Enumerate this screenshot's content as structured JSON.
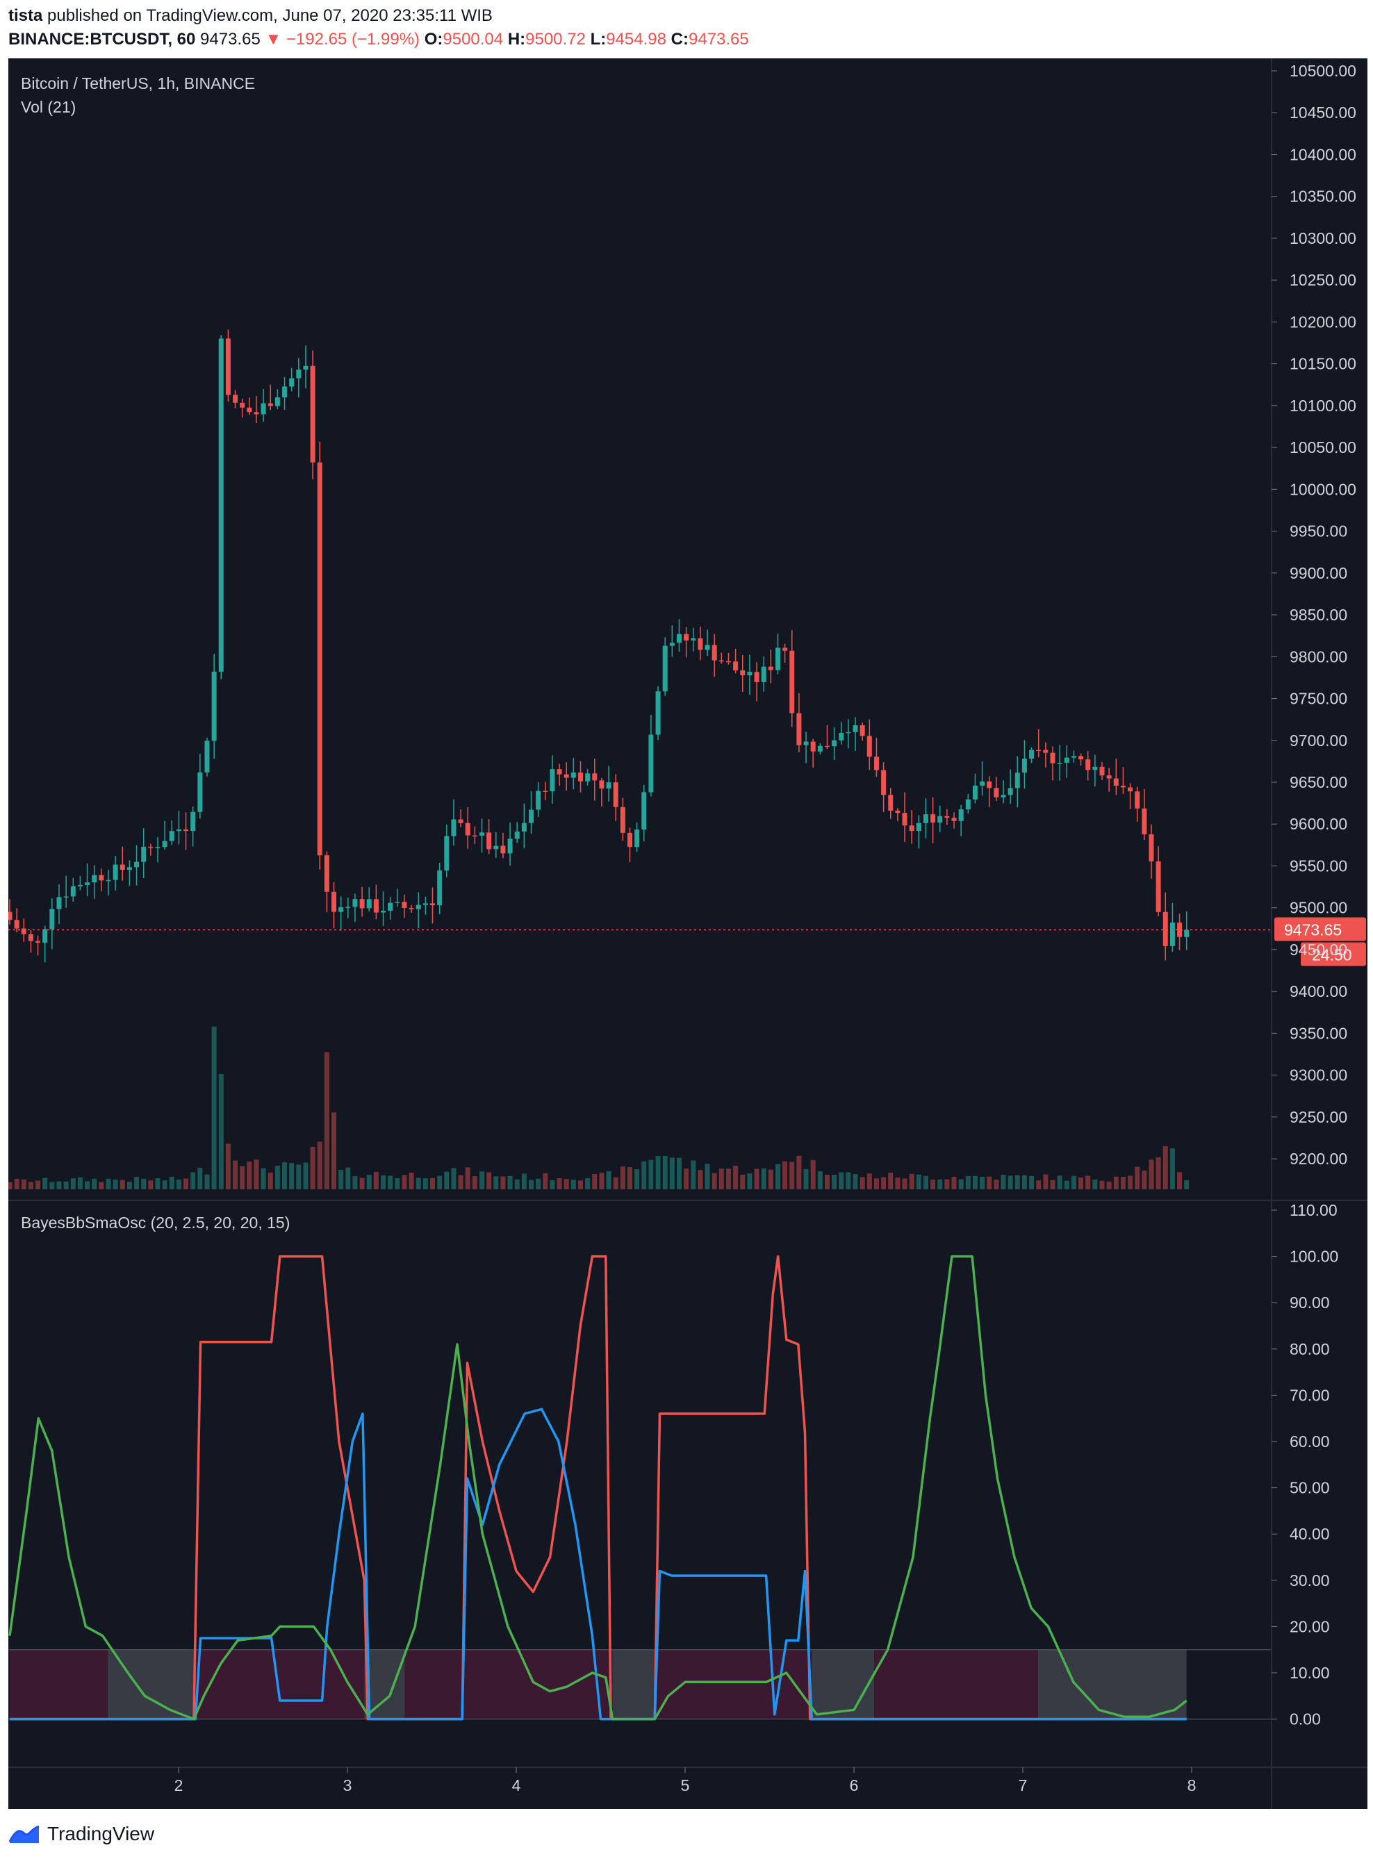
{
  "header": {
    "author": "tista",
    "published": "published on TradingView.com, June 07, 2020 23:35:11 WIB",
    "symbol": "BINANCE:BTCUSDT, 60",
    "last": "9473.65",
    "change": "▼ −192.65 (−1.99%)",
    "o_label": "O:",
    "o_value": "9500.04",
    "h_label": "H:",
    "h_value": "9500.72",
    "l_label": "L:",
    "l_value": "9454.98",
    "c_label": "C:",
    "c_value": "9473.65"
  },
  "footer": {
    "brand": "TradingView",
    "logo_icon": "tradingview-logo-icon"
  },
  "colors": {
    "background": "#131722",
    "up": "#26a69a",
    "down": "#ef5350",
    "osc_red": "#ef5350",
    "osc_blue": "#2196f3",
    "osc_green": "#4caf50"
  },
  "chart_data": [
    {
      "type": "candlestick",
      "title": "Bitcoin / TetherUS, 1h, BINANCE",
      "subtitle": "Vol (21)",
      "ylim": [
        9160,
        10520
      ],
      "y_ticks": [
        "10500.00",
        "10450.00",
        "10400.00",
        "10350.00",
        "10300.00",
        "10250.00",
        "10200.00",
        "10150.00",
        "10100.00",
        "10050.00",
        "10000.00",
        "9950.00",
        "9900.00",
        "9850.00",
        "9800.00",
        "9750.00",
        "9700.00",
        "9650.00",
        "9600.00",
        "9550.00",
        "9500.00",
        "9450.00",
        "9400.00",
        "9350.00",
        "9300.00",
        "9250.00",
        "9200.00"
      ],
      "last_price_label": "9473.65",
      "countdown_label": "24:50",
      "last_price": 9473.65,
      "x_day_range": [
        1.0,
        8.5
      ],
      "anchors": [
        [
          1.0,
          9495
        ],
        [
          1.2,
          9450
        ],
        [
          1.3,
          9510
        ],
        [
          1.5,
          9535
        ],
        [
          1.7,
          9545
        ],
        [
          1.9,
          9575
        ],
        [
          2.0,
          9590
        ],
        [
          2.1,
          9600
        ],
        [
          2.17,
          9660
        ],
        [
          2.25,
          9750
        ],
        [
          2.28,
          10200
        ],
        [
          2.35,
          10100
        ],
        [
          2.5,
          10090
        ],
        [
          2.7,
          10130
        ],
        [
          2.83,
          10155
        ],
        [
          2.86,
          9580
        ],
        [
          2.95,
          9490
        ],
        [
          3.05,
          9510
        ],
        [
          3.2,
          9500
        ],
        [
          3.4,
          9500
        ],
        [
          3.55,
          9510
        ],
        [
          3.65,
          9600
        ],
        [
          3.8,
          9590
        ],
        [
          3.95,
          9560
        ],
        [
          4.05,
          9590
        ],
        [
          4.25,
          9660
        ],
        [
          4.45,
          9660
        ],
        [
          4.62,
          9640
        ],
        [
          4.7,
          9560
        ],
        [
          4.78,
          9620
        ],
        [
          4.87,
          9750
        ],
        [
          4.92,
          9820
        ],
        [
          5.1,
          9820
        ],
        [
          5.3,
          9790
        ],
        [
          5.45,
          9770
        ],
        [
          5.55,
          9790
        ],
        [
          5.62,
          9830
        ],
        [
          5.7,
          9700
        ],
        [
          5.85,
          9690
        ],
        [
          6.0,
          9720
        ],
        [
          6.1,
          9700
        ],
        [
          6.22,
          9630
        ],
        [
          6.35,
          9590
        ],
        [
          6.5,
          9610
        ],
        [
          6.65,
          9610
        ],
        [
          6.75,
          9650
        ],
        [
          6.95,
          9630
        ],
        [
          7.05,
          9680
        ],
        [
          7.3,
          9680
        ],
        [
          7.45,
          9670
        ],
        [
          7.6,
          9650
        ],
        [
          7.72,
          9620
        ],
        [
          7.8,
          9560
        ],
        [
          7.87,
          9450
        ],
        [
          7.93,
          9480
        ],
        [
          7.97,
          9473.65
        ]
      ],
      "volume_anchors": [
        [
          1.0,
          12
        ],
        [
          1.5,
          14
        ],
        [
          2.0,
          14
        ],
        [
          2.17,
          30
        ],
        [
          2.2,
          330
        ],
        [
          2.28,
          80
        ],
        [
          2.4,
          35
        ],
        [
          2.7,
          30
        ],
        [
          2.85,
          60
        ],
        [
          2.87,
          210
        ],
        [
          2.95,
          25
        ],
        [
          3.3,
          20
        ],
        [
          3.7,
          25
        ],
        [
          4.0,
          18
        ],
        [
          4.5,
          18
        ],
        [
          4.7,
          30
        ],
        [
          4.85,
          55
        ],
        [
          5.0,
          35
        ],
        [
          5.5,
          25
        ],
        [
          5.6,
          50
        ],
        [
          5.75,
          35
        ],
        [
          6.0,
          20
        ],
        [
          6.5,
          18
        ],
        [
          7.0,
          18
        ],
        [
          7.5,
          15
        ],
        [
          7.8,
          40
        ],
        [
          7.88,
          55
        ],
        [
          7.95,
          15
        ]
      ],
      "x_ticks": [
        "2",
        "3",
        "4",
        "5",
        "6",
        "7",
        "8"
      ]
    },
    {
      "type": "line",
      "title": "BayesBbSmaOsc (20, 2.5, 20, 20, 15)",
      "ylim": [
        -5,
        113
      ],
      "y_ticks": [
        "110.00",
        "100.00",
        "90.00",
        "80.00",
        "70.00",
        "60.00",
        "50.00",
        "40.00",
        "30.00",
        "20.00",
        "10.00",
        "0.00"
      ],
      "band": [
        0,
        15
      ],
      "band_segments": [
        {
          "x": [
            1.0,
            1.58
          ],
          "kind": "maroon"
        },
        {
          "x": [
            1.58,
            2.1
          ],
          "kind": "gray"
        },
        {
          "x": [
            2.1,
            3.1
          ],
          "kind": "maroon"
        },
        {
          "x": [
            3.1,
            3.34
          ],
          "kind": "gray"
        },
        {
          "x": [
            3.34,
            4.57
          ],
          "kind": "maroon"
        },
        {
          "x": [
            4.57,
            4.82
          ],
          "kind": "gray"
        },
        {
          "x": [
            4.82,
            5.75
          ],
          "kind": "maroon"
        },
        {
          "x": [
            5.75,
            6.12
          ],
          "kind": "gray"
        },
        {
          "x": [
            6.12,
            7.09
          ],
          "kind": "maroon"
        },
        {
          "x": [
            7.09,
            7.97
          ],
          "kind": "gray"
        }
      ],
      "series": [
        {
          "color": "#ef5350",
          "points": [
            [
              1.0,
              0
            ],
            [
              2.09,
              0
            ],
            [
              2.13,
              81.5
            ],
            [
              2.55,
              81.5
            ],
            [
              2.6,
              100
            ],
            [
              2.85,
              100
            ],
            [
              2.9,
              80
            ],
            [
              2.95,
              60
            ],
            [
              3.05,
              40
            ],
            [
              3.1,
              30
            ],
            [
              3.12,
              0
            ],
            [
              3.68,
              0
            ],
            [
              3.71,
              77
            ],
            [
              3.8,
              60
            ],
            [
              3.9,
              45
            ],
            [
              4.0,
              32
            ],
            [
              4.1,
              27.5
            ],
            [
              4.2,
              35
            ],
            [
              4.3,
              60
            ],
            [
              4.38,
              85
            ],
            [
              4.45,
              100
            ],
            [
              4.53,
              100
            ],
            [
              4.56,
              0
            ],
            [
              4.82,
              0
            ],
            [
              4.85,
              66
            ],
            [
              5.47,
              66
            ],
            [
              5.52,
              92
            ],
            [
              5.55,
              100
            ],
            [
              5.6,
              82
            ],
            [
              5.67,
              81
            ],
            [
              5.71,
              62
            ],
            [
              5.74,
              0
            ],
            [
              7.97,
              0
            ]
          ]
        },
        {
          "color": "#2196f3",
          "points": [
            [
              1.0,
              0
            ],
            [
              2.1,
              0
            ],
            [
              2.13,
              17.5
            ],
            [
              2.3,
              17.5
            ],
            [
              2.55,
              17.5
            ],
            [
              2.6,
              4
            ],
            [
              2.85,
              4
            ],
            [
              2.88,
              20
            ],
            [
              2.95,
              40
            ],
            [
              3.03,
              60
            ],
            [
              3.09,
              66
            ],
            [
              3.13,
              0
            ],
            [
              3.68,
              0
            ],
            [
              3.71,
              52
            ],
            [
              3.8,
              42
            ],
            [
              3.9,
              55
            ],
            [
              4.05,
              66
            ],
            [
              4.15,
              67
            ],
            [
              4.25,
              60
            ],
            [
              4.35,
              42
            ],
            [
              4.45,
              18
            ],
            [
              4.5,
              0
            ],
            [
              4.82,
              0
            ],
            [
              4.85,
              32
            ],
            [
              4.92,
              31
            ],
            [
              5.48,
              31
            ],
            [
              5.53,
              1
            ],
            [
              5.6,
              17
            ],
            [
              5.67,
              17
            ],
            [
              5.71,
              32
            ],
            [
              5.75,
              0
            ],
            [
              7.97,
              0
            ]
          ]
        },
        {
          "color": "#4caf50",
          "points": [
            [
              1.0,
              18
            ],
            [
              1.1,
              45
            ],
            [
              1.17,
              65
            ],
            [
              1.25,
              58
            ],
            [
              1.35,
              35
            ],
            [
              1.45,
              20
            ],
            [
              1.55,
              18
            ],
            [
              1.7,
              10
            ],
            [
              1.8,
              5
            ],
            [
              1.95,
              2
            ],
            [
              2.09,
              0
            ],
            [
              2.15,
              5
            ],
            [
              2.25,
              12
            ],
            [
              2.35,
              17
            ],
            [
              2.55,
              18
            ],
            [
              2.6,
              20
            ],
            [
              2.8,
              20
            ],
            [
              2.9,
              15
            ],
            [
              3.0,
              8
            ],
            [
              3.12,
              1
            ],
            [
              3.25,
              5
            ],
            [
              3.4,
              20
            ],
            [
              3.55,
              55
            ],
            [
              3.65,
              81
            ],
            [
              3.72,
              60
            ],
            [
              3.8,
              40
            ],
            [
              3.95,
              20
            ],
            [
              4.1,
              8
            ],
            [
              4.2,
              6
            ],
            [
              4.3,
              7
            ],
            [
              4.45,
              10
            ],
            [
              4.53,
              9
            ],
            [
              4.57,
              0
            ],
            [
              4.82,
              0
            ],
            [
              4.9,
              5
            ],
            [
              5.0,
              8
            ],
            [
              5.48,
              8
            ],
            [
              5.6,
              10
            ],
            [
              5.7,
              5
            ],
            [
              5.78,
              1
            ],
            [
              6.0,
              2
            ],
            [
              6.2,
              15
            ],
            [
              6.35,
              35
            ],
            [
              6.45,
              65
            ],
            [
              6.5,
              78
            ],
            [
              6.58,
              100
            ],
            [
              6.7,
              100
            ],
            [
              6.78,
              70
            ],
            [
              6.85,
              52
            ],
            [
              6.95,
              35
            ],
            [
              7.05,
              24
            ],
            [
              7.15,
              20
            ],
            [
              7.3,
              8
            ],
            [
              7.45,
              2
            ],
            [
              7.6,
              0.5
            ],
            [
              7.75,
              0.5
            ],
            [
              7.85,
              1.5
            ],
            [
              7.9,
              2
            ],
            [
              7.97,
              4
            ]
          ]
        }
      ]
    }
  ]
}
